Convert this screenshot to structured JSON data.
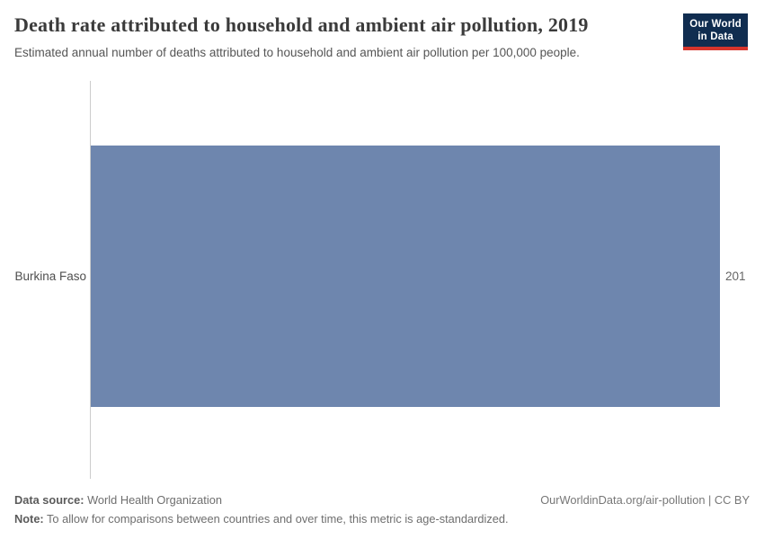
{
  "header": {
    "title": "Death rate attributed to household and ambient air pollution, 2019",
    "subtitle": "Estimated annual number of deaths attributed to household and ambient air pollution per 100,000 people."
  },
  "logo": {
    "line1": "Our World",
    "line2": "in Data"
  },
  "chart": {
    "entity": "Burkina Faso",
    "value_label": "201"
  },
  "chart_data": {
    "type": "bar",
    "orientation": "horizontal",
    "categories": [
      "Burkina Faso"
    ],
    "values": [
      201
    ],
    "title": "Death rate attributed to household and ambient air pollution, 2019",
    "subtitle": "Estimated annual number of deaths attributed to household and ambient air pollution per 100,000 people.",
    "xlabel": "",
    "ylabel": "",
    "xlim": [
      0,
      201
    ],
    "grid": false,
    "legend": false,
    "data_labels": [
      "201"
    ]
  },
  "footer": {
    "source_label": "Data source:",
    "source_value": " World Health Organization",
    "note_label": "Note:",
    "note_value": " To allow for comparisons between countries and over time, this metric is age-standardized.",
    "right_text": "OurWorldinData.org/air-pollution | CC BY"
  },
  "colors": {
    "bar": "#6e86ae",
    "logo_background": "#102d50",
    "logo_accent": "#d7352c",
    "axis_line": "#cccccc"
  }
}
